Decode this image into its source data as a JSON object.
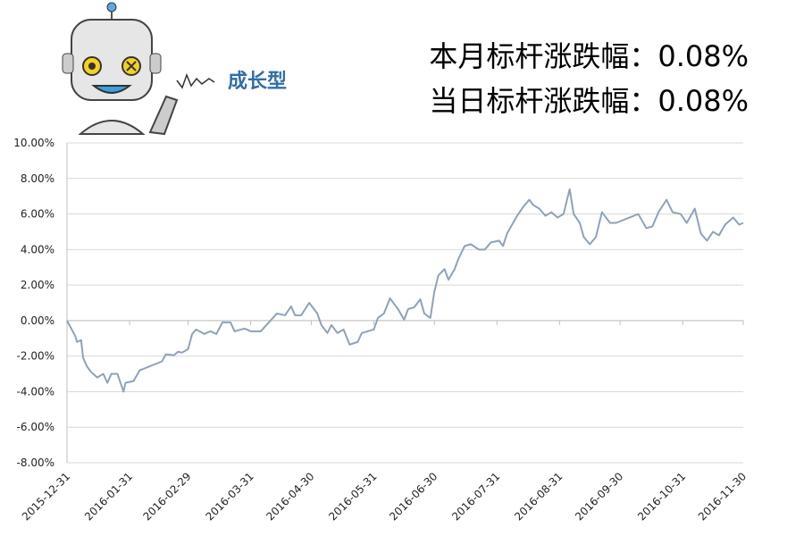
{
  "header": {
    "logo_text": "成长型",
    "lines": [
      "本月标杆涨跌幅：0.08%",
      "当日标杆涨跌幅：0.08%"
    ]
  },
  "chart_data": {
    "type": "line",
    "color": "#8ea2ba",
    "grid": true,
    "x": [
      "2015-12-31",
      "2016-01-04",
      "2016-01-05",
      "2016-01-07",
      "2016-01-08",
      "2016-01-10",
      "2016-01-12",
      "2016-01-15",
      "2016-01-18",
      "2016-01-20",
      "2016-01-22",
      "2016-01-25",
      "2016-01-28",
      "2016-01-29",
      "2016-02-02",
      "2016-02-05",
      "2016-02-16",
      "2016-02-18",
      "2016-02-22",
      "2016-02-24",
      "2016-02-26",
      "2016-02-29",
      "2016-03-02",
      "2016-03-04",
      "2016-03-08",
      "2016-03-11",
      "2016-03-14",
      "2016-03-17",
      "2016-03-21",
      "2016-03-23",
      "2016-03-28",
      "2016-03-31",
      "2016-04-05",
      "2016-04-13",
      "2016-04-17",
      "2016-04-20",
      "2016-04-22",
      "2016-04-25",
      "2016-04-29",
      "2016-05-03",
      "2016-05-05",
      "2016-05-08",
      "2016-05-10",
      "2016-05-13",
      "2016-05-16",
      "2016-05-19",
      "2016-05-23",
      "2016-05-25",
      "2016-05-28",
      "2016-05-31",
      "2016-06-02",
      "2016-06-05",
      "2016-06-08",
      "2016-06-12",
      "2016-06-15",
      "2016-06-17",
      "2016-06-20",
      "2016-06-23",
      "2016-06-25",
      "2016-06-28",
      "2016-06-30",
      "2016-07-02",
      "2016-07-05",
      "2016-07-07",
      "2016-07-10",
      "2016-07-12",
      "2016-07-15",
      "2016-07-18",
      "2016-07-22",
      "2016-07-25",
      "2016-07-28",
      "2016-08-01",
      "2016-08-03",
      "2016-08-05",
      "2016-08-08",
      "2016-08-10",
      "2016-08-13",
      "2016-08-16",
      "2016-08-18",
      "2016-08-21",
      "2016-08-24",
      "2016-08-27",
      "2016-08-30",
      "2016-09-02",
      "2016-09-05",
      "2016-09-07",
      "2016-09-10",
      "2016-09-12",
      "2016-09-15",
      "2016-09-18",
      "2016-09-21",
      "2016-09-25",
      "2016-09-28",
      "2016-10-09",
      "2016-10-13",
      "2016-10-16",
      "2016-10-19",
      "2016-10-23",
      "2016-10-26",
      "2016-10-30",
      "2016-11-02",
      "2016-11-06",
      "2016-11-09",
      "2016-11-12",
      "2016-11-15",
      "2016-11-18",
      "2016-11-21",
      "2016-11-25",
      "2016-11-28",
      "2016-11-30"
    ],
    "values": [
      0,
      -0.85,
      -1.2,
      -1.1,
      -2.1,
      -2.6,
      -2.9,
      -3.2,
      -3.0,
      -3.5,
      -3.0,
      -3.0,
      -4.0,
      -3.5,
      -3.4,
      -2.8,
      -2.3,
      -1.9,
      -1.95,
      -1.75,
      -1.8,
      -1.6,
      -0.75,
      -0.5,
      -0.75,
      -0.6,
      -0.75,
      -0.1,
      -0.1,
      -0.6,
      -0.45,
      -0.6,
      -0.6,
      0.4,
      0.3,
      0.8,
      0.3,
      0.3,
      1.0,
      0.4,
      -0.25,
      -0.7,
      -0.25,
      -0.7,
      -0.5,
      -1.35,
      -1.2,
      -0.7,
      -0.6,
      -0.5,
      0.15,
      0.4,
      1.25,
      0.65,
      0.05,
      0.65,
      0.75,
      1.2,
      0.4,
      0.15,
      1.65,
      2.55,
      2.9,
      2.3,
      2.9,
      3.5,
      4.2,
      4.3,
      4.0,
      4.0,
      4.4,
      4.5,
      4.2,
      4.9,
      5.5,
      5.9,
      6.4,
      6.8,
      6.5,
      6.3,
      5.9,
      6.1,
      5.8,
      6.0,
      7.4,
      6.0,
      5.5,
      4.7,
      4.3,
      4.7,
      6.1,
      5.5,
      5.5,
      6.0,
      5.2,
      5.3,
      6.1,
      6.8,
      6.1,
      6.0,
      5.5,
      6.3,
      4.9,
      4.5,
      5.0,
      4.8,
      5.4,
      5.8,
      5.4,
      5.5
    ],
    "xlim": [
      "2015-12-31",
      "2016-11-30"
    ],
    "xticks": [
      "2015-12-31",
      "2016-01-31",
      "2016-02-29",
      "2016-03-31",
      "2016-04-30",
      "2016-05-31",
      "2016-06-30",
      "2016-07-31",
      "2016-08-31",
      "2016-09-30",
      "2016-10-31",
      "2016-11-30"
    ],
    "ylim": [
      -8,
      10
    ],
    "yticks": [
      {
        "value": -8,
        "label": "-8.00%"
      },
      {
        "value": -6,
        "label": "-6.00%"
      },
      {
        "value": -4,
        "label": "-4.00%"
      },
      {
        "value": -2,
        "label": "-2.00%"
      },
      {
        "value": 0,
        "label": "0.00%"
      },
      {
        "value": 2,
        "label": "2.00%"
      },
      {
        "value": 4,
        "label": "4.00%"
      },
      {
        "value": 6,
        "label": "6.00%"
      },
      {
        "value": 8,
        "label": "8.00%"
      },
      {
        "value": 10,
        "label": "10.00%"
      }
    ]
  }
}
